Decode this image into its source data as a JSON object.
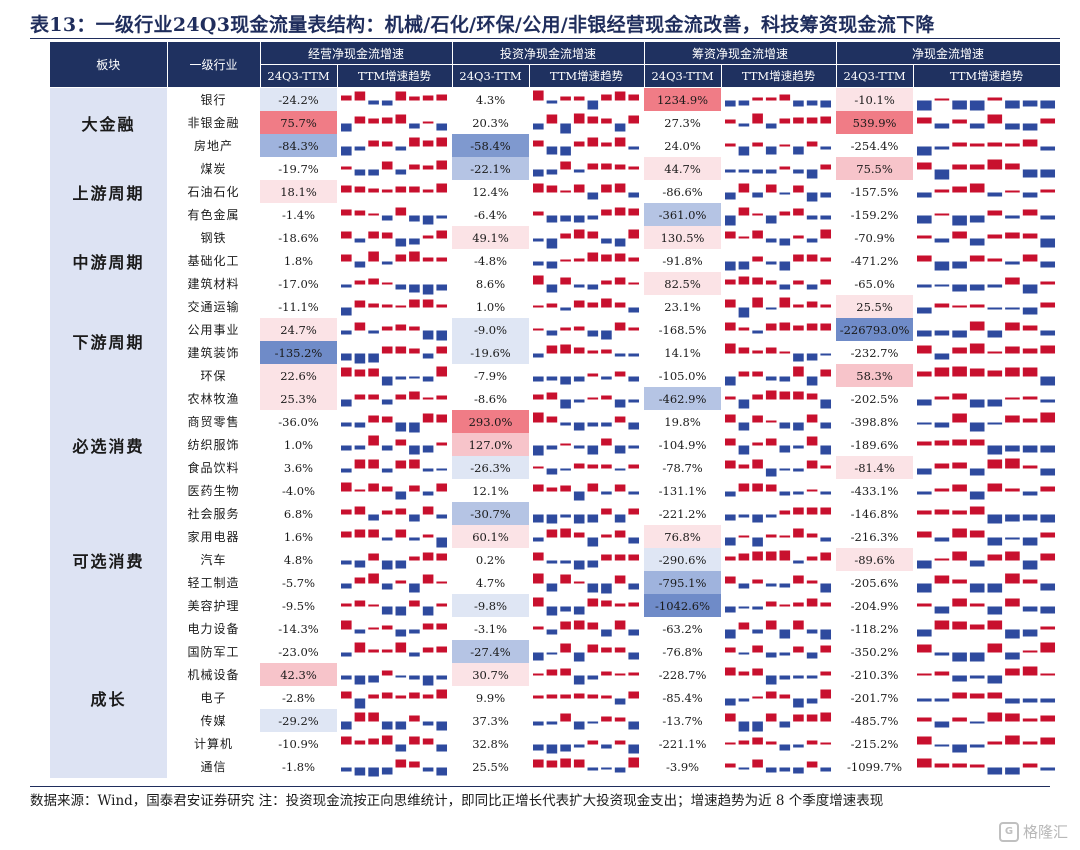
{
  "title": "表13：一级行业24Q3现金流量表结构：机械/石化/环保/公用/非银经营现金流改善，科技筹资现金流下降",
  "footnote": "数据来源：Wind，国泰君安证券研究  注：投资现金流按正向思维统计，即同比正增长代表扩大投资现金支出；增速趋势为近 8 个季度增速表现",
  "logo_text": "格隆汇",
  "colors": {
    "header_bg": "#1f3160",
    "sector_bg": "#dde3f3",
    "bar_positive": "#c8102e",
    "bar_negative": "#2e4a9e"
  },
  "header": {
    "sector": "板块",
    "industry": "一级行业",
    "groups": [
      "经营净现金流增速",
      "投资净现金流增速",
      "筹资净现金流增速",
      "净现金流增速"
    ],
    "sub_value": "24Q3-TTM",
    "sub_trend": "TTM增速趋势"
  },
  "sectors": [
    {
      "name": "大金融",
      "rows": [
        {
          "industry": "银行",
          "values": [
            "-24.2%",
            "4.3%",
            "1234.9%",
            "-10.1%"
          ],
          "bg": [
            "#dfe6f4",
            "#ffffff",
            "#f07c86",
            "#fbe3e6"
          ]
        },
        {
          "industry": "非银金融",
          "values": [
            "75.7%",
            "20.3%",
            "27.3%",
            "539.9%"
          ],
          "bg": [
            "#f07c86",
            "#ffffff",
            "#ffffff",
            "#f07c86"
          ]
        },
        {
          "industry": "房地产",
          "values": [
            "-84.3%",
            "-58.4%",
            "24.0%",
            "-254.4%"
          ],
          "bg": [
            "#9fb3dd",
            "#7f99cf",
            "#ffffff",
            "#ffffff"
          ]
        }
      ]
    },
    {
      "name": "上游周期",
      "rows": [
        {
          "industry": "煤炭",
          "values": [
            "-19.7%",
            "-22.1%",
            "44.7%",
            "75.5%"
          ],
          "bg": [
            "#ffffff",
            "#b5c4e4",
            "#fbe3e6",
            "#f7c4ca"
          ]
        },
        {
          "industry": "石油石化",
          "values": [
            "18.1%",
            "12.4%",
            "-86.6%",
            "-157.5%"
          ],
          "bg": [
            "#fbe3e6",
            "#ffffff",
            "#ffffff",
            "#ffffff"
          ]
        },
        {
          "industry": "有色金属",
          "values": [
            "-1.4%",
            "-6.4%",
            "-361.0%",
            "-159.2%"
          ],
          "bg": [
            "#ffffff",
            "#ffffff",
            "#b5c4e4",
            "#ffffff"
          ]
        }
      ]
    },
    {
      "name": "中游周期",
      "rows": [
        {
          "industry": "钢铁",
          "values": [
            "-18.6%",
            "49.1%",
            "130.5%",
            "-70.9%"
          ],
          "bg": [
            "#ffffff",
            "#fbe3e6",
            "#fbe3e6",
            "#ffffff"
          ]
        },
        {
          "industry": "基础化工",
          "values": [
            "1.8%",
            "-4.8%",
            "-91.8%",
            "-471.2%"
          ],
          "bg": [
            "#ffffff",
            "#ffffff",
            "#ffffff",
            "#ffffff"
          ]
        },
        {
          "industry": "建筑材料",
          "values": [
            "-17.0%",
            "8.6%",
            "82.5%",
            "-65.0%"
          ],
          "bg": [
            "#ffffff",
            "#ffffff",
            "#fbe3e6",
            "#ffffff"
          ]
        }
      ]
    },
    {
      "name": "下游周期",
      "rows": [
        {
          "industry": "交通运输",
          "values": [
            "-11.1%",
            "1.0%",
            "23.1%",
            "25.5%"
          ],
          "bg": [
            "#ffffff",
            "#ffffff",
            "#ffffff",
            "#fbe3e6"
          ]
        },
        {
          "industry": "公用事业",
          "values": [
            "24.7%",
            "-9.0%",
            "-168.5%",
            "-226793.0%"
          ],
          "bg": [
            "#fbe3e6",
            "#dfe6f4",
            "#ffffff",
            "#6f8bc8"
          ]
        },
        {
          "industry": "建筑装饰",
          "values": [
            "-135.2%",
            "-19.6%",
            "14.1%",
            "-232.7%"
          ],
          "bg": [
            "#6f8bc8",
            "#dfe6f4",
            "#ffffff",
            "#ffffff"
          ]
        },
        {
          "industry": "环保",
          "values": [
            "22.6%",
            "-7.9%",
            "-105.0%",
            "58.3%"
          ],
          "bg": [
            "#fbe3e6",
            "#ffffff",
            "#ffffff",
            "#f7c4ca"
          ]
        }
      ]
    },
    {
      "name": "必选消费",
      "rows": [
        {
          "industry": "农林牧渔",
          "values": [
            "25.3%",
            "-8.6%",
            "-462.9%",
            "-202.5%"
          ],
          "bg": [
            "#fbe3e6",
            "#ffffff",
            "#b5c4e4",
            "#ffffff"
          ]
        },
        {
          "industry": "商贸零售",
          "values": [
            "-36.0%",
            "293.0%",
            "19.8%",
            "-398.8%"
          ],
          "bg": [
            "#ffffff",
            "#f07c86",
            "#ffffff",
            "#ffffff"
          ]
        },
        {
          "industry": "纺织服饰",
          "values": [
            "1.0%",
            "127.0%",
            "-104.9%",
            "-189.6%"
          ],
          "bg": [
            "#ffffff",
            "#f7c4ca",
            "#ffffff",
            "#ffffff"
          ]
        },
        {
          "industry": "食品饮料",
          "values": [
            "3.6%",
            "-26.3%",
            "-78.7%",
            "-81.4%"
          ],
          "bg": [
            "#ffffff",
            "#dfe6f4",
            "#ffffff",
            "#fbe3e6"
          ]
        },
        {
          "industry": "医药生物",
          "values": [
            "-4.0%",
            "12.1%",
            "-131.1%",
            "-433.1%"
          ],
          "bg": [
            "#ffffff",
            "#ffffff",
            "#ffffff",
            "#ffffff"
          ]
        }
      ]
    },
    {
      "name": "可选消费",
      "rows": [
        {
          "industry": "社会服务",
          "values": [
            "6.8%",
            "-30.7%",
            "-221.2%",
            "-146.8%"
          ],
          "bg": [
            "#ffffff",
            "#b5c4e4",
            "#ffffff",
            "#ffffff"
          ]
        },
        {
          "industry": "家用电器",
          "values": [
            "1.6%",
            "60.1%",
            "76.8%",
            "-216.3%"
          ],
          "bg": [
            "#ffffff",
            "#fbe3e6",
            "#fbe3e6",
            "#ffffff"
          ]
        },
        {
          "industry": "汽车",
          "values": [
            "4.8%",
            "0.2%",
            "-290.6%",
            "-89.6%"
          ],
          "bg": [
            "#ffffff",
            "#ffffff",
            "#dfe6f4",
            "#fbe3e6"
          ]
        },
        {
          "industry": "轻工制造",
          "values": [
            "-5.7%",
            "4.7%",
            "-795.1%",
            "-205.6%"
          ],
          "bg": [
            "#ffffff",
            "#ffffff",
            "#9fb3dd",
            "#ffffff"
          ]
        },
        {
          "industry": "美容护理",
          "values": [
            "-9.5%",
            "-9.8%",
            "-1042.6%",
            "-204.9%"
          ],
          "bg": [
            "#ffffff",
            "#dfe6f4",
            "#6f8bc8",
            "#ffffff"
          ]
        }
      ]
    },
    {
      "name": "成长",
      "rows": [
        {
          "industry": "电力设备",
          "values": [
            "-14.3%",
            "-3.1%",
            "-63.2%",
            "-118.2%"
          ],
          "bg": [
            "#ffffff",
            "#ffffff",
            "#ffffff",
            "#ffffff"
          ]
        },
        {
          "industry": "国防军工",
          "values": [
            "-23.0%",
            "-27.4%",
            "-76.8%",
            "-350.2%"
          ],
          "bg": [
            "#ffffff",
            "#b5c4e4",
            "#ffffff",
            "#ffffff"
          ]
        },
        {
          "industry": "机械设备",
          "values": [
            "42.3%",
            "30.7%",
            "-228.7%",
            "-210.3%"
          ],
          "bg": [
            "#f7c4ca",
            "#fbe3e6",
            "#ffffff",
            "#ffffff"
          ]
        },
        {
          "industry": "电子",
          "values": [
            "-2.8%",
            "9.9%",
            "-85.4%",
            "-201.7%"
          ],
          "bg": [
            "#ffffff",
            "#ffffff",
            "#ffffff",
            "#ffffff"
          ]
        },
        {
          "industry": "传媒",
          "values": [
            "-29.2%",
            "37.3%",
            "-13.7%",
            "-485.7%"
          ],
          "bg": [
            "#dfe6f4",
            "#ffffff",
            "#ffffff",
            "#ffffff"
          ]
        },
        {
          "industry": "计算机",
          "values": [
            "-10.9%",
            "32.8%",
            "-221.1%",
            "-215.2%"
          ],
          "bg": [
            "#ffffff",
            "#ffffff",
            "#ffffff",
            "#ffffff"
          ]
        },
        {
          "industry": "通信",
          "values": [
            "-1.8%",
            "25.5%",
            "-3.9%",
            "-1099.7%"
          ],
          "bg": [
            "#ffffff",
            "#ffffff",
            "#ffffff",
            "#ffffff"
          ]
        }
      ]
    }
  ]
}
